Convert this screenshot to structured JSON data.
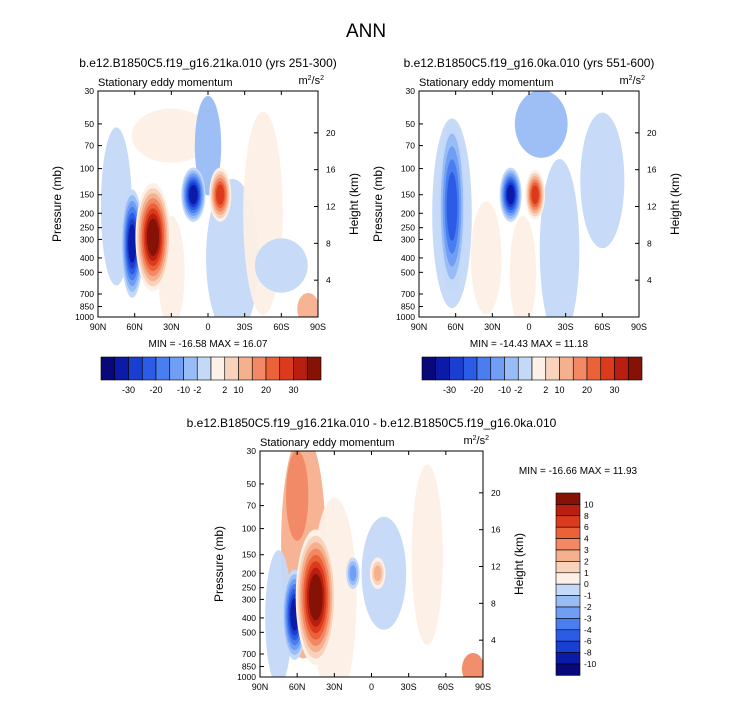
{
  "page": {
    "title": "ANN"
  },
  "palette": {
    "seq": [
      "#08087a",
      "#0c1aa8",
      "#1a3ed0",
      "#2c5ce6",
      "#4a7ef0",
      "#6f9ef4",
      "#98bcf6",
      "#c4d8f8",
      "#e6eefc",
      "#fdf0e6",
      "#f9d2bb",
      "#f5b08e",
      "#f28864",
      "#ec6238",
      "#dc3a1c",
      "#b81f10",
      "#861206"
    ],
    "bg_neutral": "#ffffff"
  },
  "charts": {
    "top_left": {
      "title": "b.e12.B1850C5.f19_g16.21ka.010 (yrs 251-300)",
      "left_label": "Stationary eddy momentum",
      "units_base": "m",
      "units_sup1": "2",
      "units_mid": "/s",
      "units_sup2": "2",
      "ylabel": "Pressure (mb)",
      "ylabel2": "Height (km)",
      "minmax": "MIN = -16.58  MAX = 16.07"
    },
    "top_right": {
      "title": "b.e12.B1850C5.f19_g16.0ka.010 (yrs 551-600)",
      "left_label": "Stationary eddy momentum",
      "units_base": "m",
      "units_sup1": "2",
      "units_mid": "/s",
      "units_sup2": "2",
      "ylabel": "Pressure (mb)",
      "ylabel2": "Height (km)",
      "minmax": "MIN = -14.43  MAX = 11.18"
    },
    "bottom": {
      "title": "b.e12.B1850C5.f19_g16.21ka.010 - b.e12.B1850C5.f19_g16.0ka.010",
      "left_label": "Stationary eddy momentum",
      "units_base": "m",
      "units_sup1": "2",
      "units_mid": "/s",
      "units_sup2": "2",
      "ylabel": "Pressure (mb)",
      "ylabel2": "Height (km)",
      "minmax": "MIN = -16.66  MAX = 11.93"
    }
  },
  "chart_data": [
    {
      "type": "heatmap",
      "title": "b.e12.B1850C5.f19_g16.21ka.010 (yrs 251-300)",
      "xlabel": "",
      "ylabel": "Pressure (mb)",
      "ylabel_right": "Height (km)",
      "x_ticks": [
        "90N",
        "60N",
        "30N",
        "0",
        "30S",
        "60S",
        "90S"
      ],
      "y_ticks": [
        "30",
        "50",
        "70",
        "100",
        "150",
        "200",
        "250",
        "300",
        "400",
        "500",
        "700",
        "850",
        "1000"
      ],
      "y2_ticks": [
        "20",
        "16",
        "12",
        "8",
        "4"
      ],
      "ylim": [
        1000,
        30
      ],
      "min": -16.58,
      "max": 16.07,
      "colorbar_levels": [
        "-30",
        "-20",
        "-10",
        "-2",
        "2",
        "10",
        "20",
        "30"
      ],
      "features": [
        {
          "lat": 62,
          "p": 320,
          "value": -14
        },
        {
          "lat": 45,
          "p": 290,
          "value": 15
        },
        {
          "lat": 12,
          "p": 150,
          "value": -13
        },
        {
          "lat": -10,
          "p": 150,
          "value": 12
        }
      ]
    },
    {
      "type": "heatmap",
      "title": "b.e12.B1850C5.f19_g16.0ka.010 (yrs 551-600)",
      "xlabel": "",
      "ylabel": "Pressure (mb)",
      "ylabel_right": "Height (km)",
      "x_ticks": [
        "90N",
        "60N",
        "30N",
        "0",
        "30S",
        "60S",
        "90S"
      ],
      "y_ticks": [
        "30",
        "50",
        "70",
        "100",
        "150",
        "200",
        "250",
        "300",
        "400",
        "500",
        "700",
        "850",
        "1000"
      ],
      "y2_ticks": [
        "20",
        "16",
        "12",
        "8",
        "4"
      ],
      "ylim": [
        1000,
        30
      ],
      "min": -14.43,
      "max": 11.18,
      "colorbar_levels": [
        "-30",
        "-20",
        "-10",
        "-2",
        "2",
        "10",
        "20",
        "30"
      ],
      "features": [
        {
          "lat": 63,
          "p": 180,
          "value": -8
        },
        {
          "lat": 15,
          "p": 150,
          "value": -13
        },
        {
          "lat": -5,
          "p": 150,
          "value": 11
        }
      ]
    },
    {
      "type": "heatmap",
      "title": "b.e12.B1850C5.f19_g16.21ka.010 - b.e12.B1850C5.f19_g16.0ka.010",
      "xlabel": "",
      "ylabel": "Pressure (mb)",
      "ylabel_right": "Height (km)",
      "x_ticks": [
        "90N",
        "60N",
        "30N",
        "0",
        "30S",
        "60S",
        "90S"
      ],
      "y_ticks": [
        "30",
        "50",
        "70",
        "100",
        "150",
        "200",
        "250",
        "300",
        "400",
        "500",
        "700",
        "850",
        "1000"
      ],
      "y2_ticks": [
        "20",
        "16",
        "12",
        "8",
        "4"
      ],
      "ylim": [
        1000,
        30
      ],
      "min": -16.66,
      "max": 11.93,
      "colorbar_levels": [
        "10",
        "8",
        "6",
        "4",
        "3",
        "2",
        "1",
        "0",
        "-1",
        "-2",
        "-3",
        "-4",
        "-6",
        "-8",
        "-10"
      ],
      "features": [
        {
          "lat": 62,
          "p": 380,
          "value": -10
        },
        {
          "lat": 45,
          "p": 290,
          "value": 11
        },
        {
          "lat": 15,
          "p": 200,
          "value": -4
        },
        {
          "lat": -5,
          "p": 200,
          "value": 4
        }
      ]
    }
  ]
}
